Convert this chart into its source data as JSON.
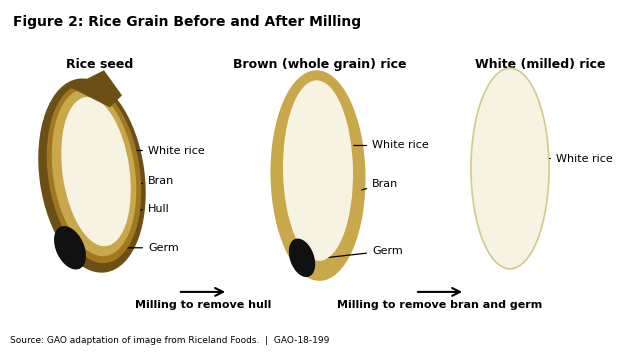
{
  "title": "Figure 2: Rice Grain Before and After Milling",
  "bg_color": "#e0ddd8",
  "fig_bg_color": "#ffffff",
  "source_text": "Source: GAO adaptation of image from Riceland Foods.  |  GAO-18-199",
  "section_titles": [
    "Rice seed",
    "Brown (whole grain) rice",
    "White (milled) rice"
  ],
  "arrow_labels": [
    "Milling to remove hull",
    "Milling to remove bran and germ"
  ],
  "colors": {
    "hull_dark": "#6b4f15",
    "hull_medium": "#a07820",
    "hull_tan": "#c9a84c",
    "white_rice": "#f7f3e3",
    "white_rice_edge": "#d4c98a",
    "germ": "#111111"
  },
  "label_fontsize": 8,
  "title_fontsize": 10,
  "section_title_fontsize": 9,
  "arrow_fontsize": 8
}
